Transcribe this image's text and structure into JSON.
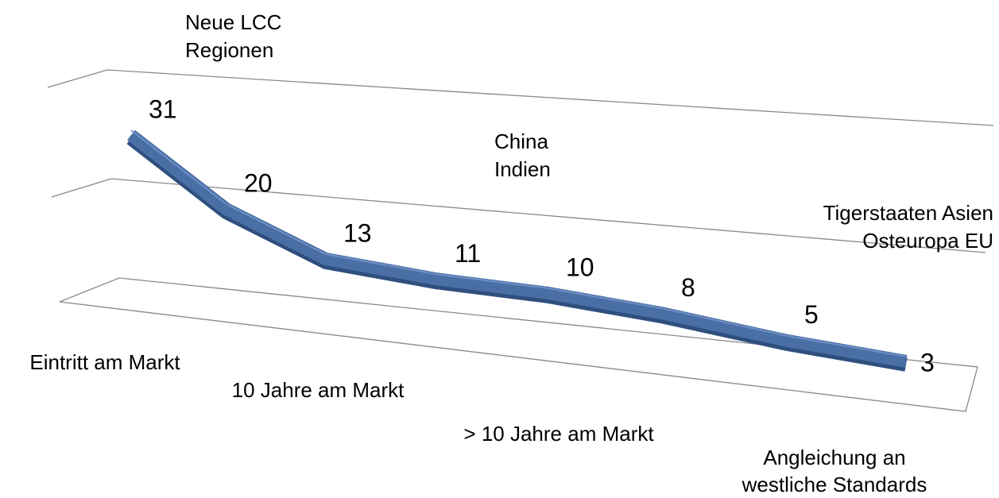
{
  "chart_data": {
    "type": "line3d",
    "categories": [
      [
        "Eintritt am Markt"
      ],
      null,
      [
        "10 Jahre am Markt"
      ],
      null,
      [
        "> 10 Jahre am Markt"
      ],
      null,
      [
        "Angleichung an",
        "westliche Standards"
      ],
      null
    ],
    "values": [
      31,
      20,
      13,
      11,
      10,
      8,
      5,
      3
    ],
    "color": "#4a6fa5",
    "ylim": [
      0,
      35
    ],
    "annotations": [
      {
        "lines": [
          "Neue LCC",
          "Regionen"
        ]
      },
      {
        "lines": [
          "China",
          "Indien"
        ]
      },
      {
        "lines": [
          "Tigerstaaten Asien",
          "Osteuropa EU"
        ]
      }
    ]
  }
}
